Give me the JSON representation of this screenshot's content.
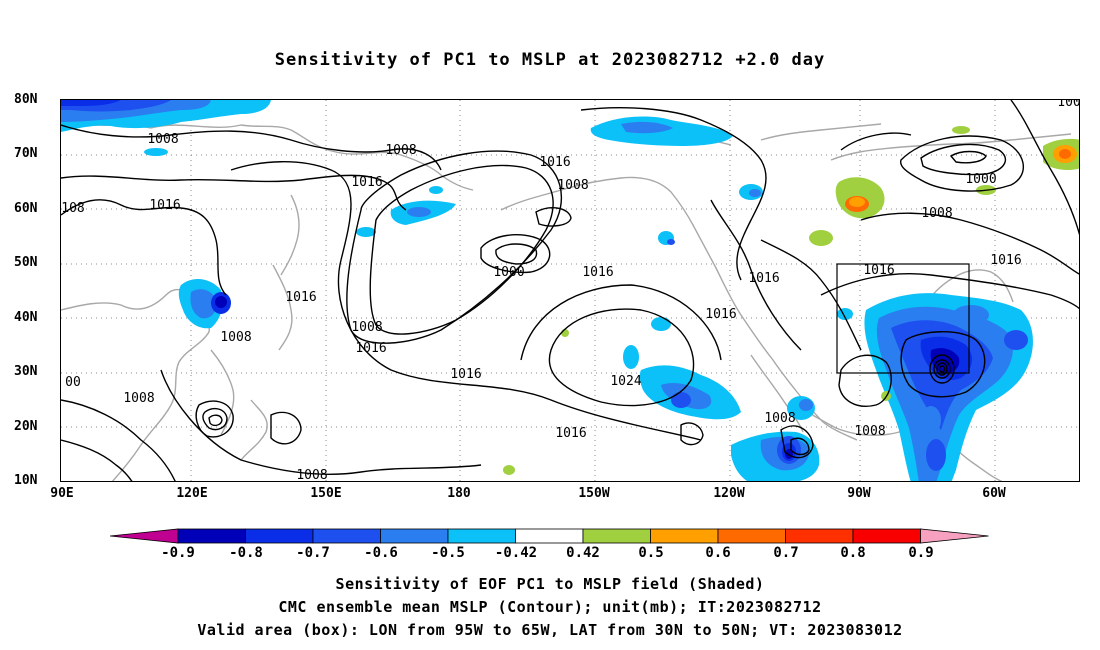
{
  "title": "Sensitivity of PC1 to MSLP at 2023082712 +2.0 day",
  "lat_labels": [
    "80N",
    "70N",
    "60N",
    "50N",
    "40N",
    "30N",
    "20N",
    "10N"
  ],
  "lon_labels": [
    "90E",
    "120E",
    "150E",
    "180",
    "150W",
    "120W",
    "90W",
    "60W"
  ],
  "contour_labels": [
    "1008",
    "1008",
    "1016",
    "1016",
    "1008",
    "1016",
    "1000",
    "1016",
    "1016",
    "1008",
    "1024",
    "1016",
    "1008",
    "1000",
    "1016",
    "1008",
    "1016",
    "1008",
    "1016",
    "1016",
    "1016",
    "1008",
    "1008",
    "1008",
    "1008",
    "00",
    "108",
    "100"
  ],
  "colorbar": {
    "labels": [
      "-0.9",
      "-0.8",
      "-0.7",
      "-0.6",
      "-0.5",
      "-0.42",
      "0.42",
      "0.5",
      "0.6",
      "0.7",
      "0.8",
      "0.9"
    ],
    "colors": [
      "#c00090",
      "#0000b8",
      "#0a2ee8",
      "#1e50f0",
      "#2a7ef0",
      "#0cc0f8",
      "#ffffff",
      "#a0d040",
      "#ffa000",
      "#ff6a00",
      "#ff3000",
      "#f80000",
      "#f8a0c0"
    ]
  },
  "captions": [
    "Sensitivity of EOF PC1 to MSLP field (Shaded)",
    "CMC ensemble mean MSLP (Contour); unit(mb); IT:2023082712",
    "Valid area (box): LON from 95W to 65W, LAT from 30N to 50N; VT: 2023083012"
  ]
}
